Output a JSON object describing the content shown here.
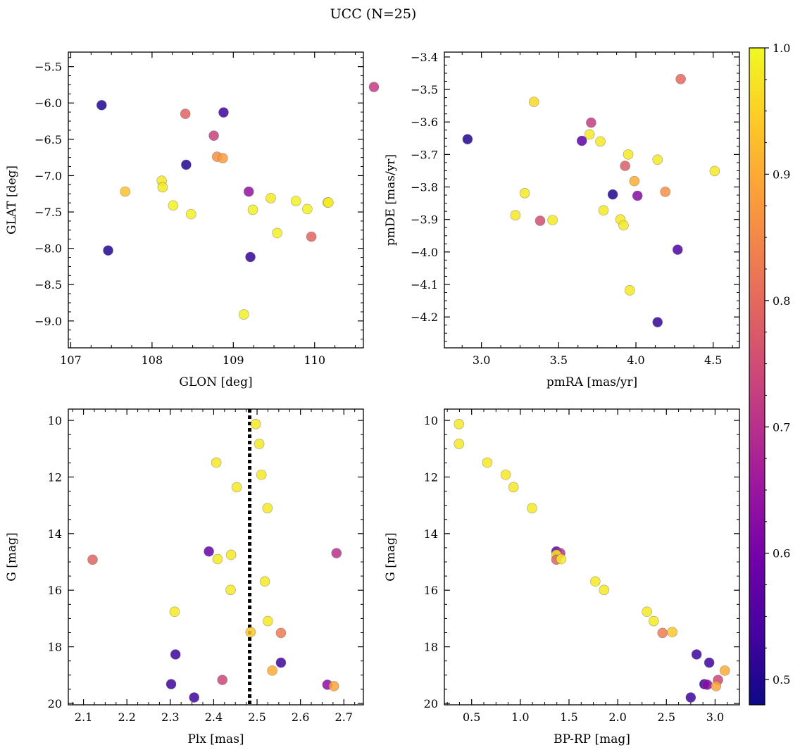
{
  "figure_title": "UCC (N=25)",
  "colormap": [
    "#0d0887",
    "#46039f",
    "#7201a8",
    "#9c179e",
    "#bd3786",
    "#d8576b",
    "#ed7953",
    "#fb9f3a",
    "#fdca26",
    "#f0f921"
  ],
  "colorbar": {
    "min": 0.48,
    "max": 1.0,
    "ticks": [
      0.5,
      0.6,
      0.7,
      0.8,
      0.9,
      1.0
    ],
    "tick_labels": [
      "0.5",
      "0.6",
      "0.7",
      "0.8",
      "0.9",
      "1.0"
    ]
  },
  "chart_data": [
    {
      "id": "glon-glat",
      "type": "scatter",
      "xlabel": "GLON [deg]",
      "ylabel": "GLAT [deg]",
      "xlim": [
        106.97,
        110.6
      ],
      "ylim": [
        -9.37,
        -5.3
      ],
      "xticks": [
        107,
        108,
        109,
        110
      ],
      "xtick_labels": [
        "107",
        "108",
        "109",
        "110"
      ],
      "yticks": [
        -9.0,
        -8.5,
        -8.0,
        -7.5,
        -7.0,
        -6.5,
        -6.0,
        -5.5
      ],
      "ytick_labels": [
        "−9.0",
        "−8.5",
        "−8.0",
        "−7.5",
        "−7.0",
        "−6.5",
        "−6.0",
        "−5.5"
      ],
      "points": [
        {
          "x": 107.38,
          "y": -6.03,
          "c": 0.5
        },
        {
          "x": 108.88,
          "y": -6.13,
          "c": 0.53
        },
        {
          "x": 108.41,
          "y": -6.15,
          "c": 0.79
        },
        {
          "x": 110.73,
          "y": -5.78,
          "c": 0.72
        },
        {
          "x": 108.76,
          "y": -6.45,
          "c": 0.73
        },
        {
          "x": 108.8,
          "y": -6.74,
          "c": 0.86
        },
        {
          "x": 108.87,
          "y": -6.76,
          "c": 0.88
        },
        {
          "x": 108.42,
          "y": -6.85,
          "c": 0.5
        },
        {
          "x": 108.12,
          "y": -7.07,
          "c": 0.98
        },
        {
          "x": 108.13,
          "y": -7.16,
          "c": 0.98
        },
        {
          "x": 107.67,
          "y": -7.22,
          "c": 0.93
        },
        {
          "x": 109.19,
          "y": -7.22,
          "c": 0.64
        },
        {
          "x": 109.46,
          "y": -7.31,
          "c": 0.98
        },
        {
          "x": 109.77,
          "y": -7.35,
          "c": 0.99
        },
        {
          "x": 110.16,
          "y": -7.37,
          "c": 0.99
        },
        {
          "x": 108.26,
          "y": -7.41,
          "c": 0.99
        },
        {
          "x": 109.91,
          "y": -7.46,
          "c": 0.99
        },
        {
          "x": 109.24,
          "y": -7.47,
          "c": 0.99
        },
        {
          "x": 108.48,
          "y": -7.53,
          "c": 0.99
        },
        {
          "x": 109.54,
          "y": -7.79,
          "c": 0.99
        },
        {
          "x": 109.96,
          "y": -7.84,
          "c": 0.79
        },
        {
          "x": 107.46,
          "y": -8.03,
          "c": 0.5
        },
        {
          "x": 109.21,
          "y": -8.12,
          "c": 0.52
        },
        {
          "x": 109.13,
          "y": -8.91,
          "c": 0.99
        },
        {
          "x": 110.17,
          "y": -7.37,
          "c": 0.98
        }
      ]
    },
    {
      "id": "pmra-pmde",
      "type": "scatter",
      "xlabel": "pmRA [mas/yr]",
      "ylabel": "pmDE [mas/yr]",
      "xlim": [
        2.76,
        4.67
      ],
      "ylim": [
        -4.295,
        -3.385
      ],
      "xticks": [
        3.0,
        3.5,
        4.0,
        4.5
      ],
      "xtick_labels": [
        "3.0",
        "3.5",
        "4.0",
        "4.5"
      ],
      "yticks": [
        -4.2,
        -4.1,
        -4.0,
        -3.9,
        -3.8,
        -3.7,
        -3.6,
        -3.5,
        -3.4
      ],
      "ytick_labels": [
        "−4.2",
        "−4.1",
        "−4.0",
        "−3.9",
        "−3.8",
        "−3.7",
        "−3.6",
        "−3.5",
        "−3.4"
      ],
      "points": [
        {
          "x": 2.91,
          "y": -3.653,
          "c": 0.5
        },
        {
          "x": 3.34,
          "y": -3.538,
          "c": 0.96
        },
        {
          "x": 4.29,
          "y": -3.468,
          "c": 0.8
        },
        {
          "x": 3.71,
          "y": -3.602,
          "c": 0.72
        },
        {
          "x": 3.65,
          "y": -3.658,
          "c": 0.57
        },
        {
          "x": 3.7,
          "y": -3.638,
          "c": 0.98
        },
        {
          "x": 3.77,
          "y": -3.66,
          "c": 0.98
        },
        {
          "x": 3.95,
          "y": -3.7,
          "c": 0.98
        },
        {
          "x": 4.14,
          "y": -3.716,
          "c": 0.98
        },
        {
          "x": 3.93,
          "y": -3.735,
          "c": 0.78
        },
        {
          "x": 4.51,
          "y": -3.751,
          "c": 0.98
        },
        {
          "x": 3.99,
          "y": -3.782,
          "c": 0.9
        },
        {
          "x": 3.28,
          "y": -3.819,
          "c": 0.98
        },
        {
          "x": 3.85,
          "y": -3.823,
          "c": 0.5
        },
        {
          "x": 4.01,
          "y": -3.827,
          "c": 0.62
        },
        {
          "x": 4.19,
          "y": -3.815,
          "c": 0.86
        },
        {
          "x": 3.79,
          "y": -3.872,
          "c": 0.98
        },
        {
          "x": 3.22,
          "y": -3.887,
          "c": 0.98
        },
        {
          "x": 3.38,
          "y": -3.904,
          "c": 0.75
        },
        {
          "x": 3.46,
          "y": -3.902,
          "c": 0.98
        },
        {
          "x": 3.9,
          "y": -3.9,
          "c": 0.98
        },
        {
          "x": 3.92,
          "y": -3.918,
          "c": 0.98
        },
        {
          "x": 4.27,
          "y": -3.993,
          "c": 0.55
        },
        {
          "x": 3.96,
          "y": -4.118,
          "c": 0.98
        },
        {
          "x": 4.14,
          "y": -4.216,
          "c": 0.52
        }
      ]
    },
    {
      "id": "plx-g",
      "type": "scatter",
      "xlabel": "Plx [mas]",
      "ylabel": "G [mag]",
      "xlim": [
        2.065,
        2.745
      ],
      "ylim": [
        20.05,
        9.6
      ],
      "y_inverted": true,
      "xticks": [
        2.1,
        2.2,
        2.3,
        2.4,
        2.5,
        2.6,
        2.7
      ],
      "xtick_labels": [
        "2.1",
        "2.2",
        "2.3",
        "2.4",
        "2.5",
        "2.6",
        "2.7"
      ],
      "yticks": [
        10,
        12,
        14,
        16,
        18,
        20
      ],
      "ytick_labels": [
        "10",
        "12",
        "14",
        "16",
        "18",
        "20"
      ],
      "vline": 2.483,
      "points": [
        {
          "x": 2.497,
          "y": 10.13,
          "c": 0.98
        },
        {
          "x": 2.505,
          "y": 10.83,
          "c": 0.98
        },
        {
          "x": 2.406,
          "y": 11.49,
          "c": 0.98
        },
        {
          "x": 2.51,
          "y": 11.92,
          "c": 0.98
        },
        {
          "x": 2.453,
          "y": 12.36,
          "c": 0.98
        },
        {
          "x": 2.524,
          "y": 13.1,
          "c": 0.98
        },
        {
          "x": 2.389,
          "y": 14.63,
          "c": 0.58
        },
        {
          "x": 2.44,
          "y": 14.75,
          "c": 0.98
        },
        {
          "x": 2.409,
          "y": 14.9,
          "c": 0.98
        },
        {
          "x": 2.121,
          "y": 14.92,
          "c": 0.79
        },
        {
          "x": 2.683,
          "y": 14.69,
          "c": 0.7
        },
        {
          "x": 2.518,
          "y": 15.69,
          "c": 0.98
        },
        {
          "x": 2.439,
          "y": 15.99,
          "c": 0.98
        },
        {
          "x": 2.31,
          "y": 16.76,
          "c": 0.98
        },
        {
          "x": 2.525,
          "y": 17.09,
          "c": 0.98
        },
        {
          "x": 2.485,
          "y": 17.48,
          "c": 0.94
        },
        {
          "x": 2.555,
          "y": 17.51,
          "c": 0.83
        },
        {
          "x": 2.312,
          "y": 18.27,
          "c": 0.53
        },
        {
          "x": 2.555,
          "y": 18.56,
          "c": 0.53
        },
        {
          "x": 2.535,
          "y": 18.84,
          "c": 0.9
        },
        {
          "x": 2.42,
          "y": 19.17,
          "c": 0.74
        },
        {
          "x": 2.302,
          "y": 19.32,
          "c": 0.53
        },
        {
          "x": 2.662,
          "y": 19.34,
          "c": 0.63
        },
        {
          "x": 2.677,
          "y": 19.39,
          "c": 0.89
        },
        {
          "x": 2.355,
          "y": 19.79,
          "c": 0.53
        }
      ]
    },
    {
      "id": "bprp-g",
      "type": "scatter",
      "xlabel": "BP-RP [mag]",
      "ylabel": "G [mag]",
      "xlim": [
        0.22,
        3.25
      ],
      "ylim": [
        20.05,
        9.6
      ],
      "y_inverted": true,
      "xticks": [
        0.5,
        1.0,
        1.5,
        2.0,
        2.5,
        3.0
      ],
      "xtick_labels": [
        "0.5",
        "1.0",
        "1.5",
        "2.0",
        "2.5",
        "3.0"
      ],
      "yticks": [
        10,
        12,
        14,
        16,
        18,
        20
      ],
      "ytick_labels": [
        "10",
        "12",
        "14",
        "16",
        "18",
        "20"
      ],
      "points": [
        {
          "x": 0.37,
          "y": 10.13,
          "c": 0.98
        },
        {
          "x": 0.37,
          "y": 10.83,
          "c": 0.98
        },
        {
          "x": 0.66,
          "y": 11.49,
          "c": 0.98
        },
        {
          "x": 0.85,
          "y": 11.92,
          "c": 0.98
        },
        {
          "x": 0.93,
          "y": 12.36,
          "c": 0.98
        },
        {
          "x": 1.12,
          "y": 13.1,
          "c": 0.98
        },
        {
          "x": 1.37,
          "y": 14.63,
          "c": 0.58
        },
        {
          "x": 1.41,
          "y": 14.69,
          "c": 0.7
        },
        {
          "x": 1.37,
          "y": 14.75,
          "c": 0.98
        },
        {
          "x": 1.37,
          "y": 14.92,
          "c": 0.79
        },
        {
          "x": 1.42,
          "y": 14.9,
          "c": 0.98
        },
        {
          "x": 1.77,
          "y": 15.69,
          "c": 0.98
        },
        {
          "x": 1.86,
          "y": 15.99,
          "c": 0.98
        },
        {
          "x": 2.3,
          "y": 16.76,
          "c": 0.98
        },
        {
          "x": 2.37,
          "y": 17.09,
          "c": 0.98
        },
        {
          "x": 2.46,
          "y": 17.51,
          "c": 0.83
        },
        {
          "x": 2.56,
          "y": 17.48,
          "c": 0.94
        },
        {
          "x": 2.81,
          "y": 18.27,
          "c": 0.53
        },
        {
          "x": 2.94,
          "y": 18.56,
          "c": 0.53
        },
        {
          "x": 3.1,
          "y": 18.84,
          "c": 0.9
        },
        {
          "x": 3.03,
          "y": 19.17,
          "c": 0.74
        },
        {
          "x": 2.89,
          "y": 19.32,
          "c": 0.53
        },
        {
          "x": 2.92,
          "y": 19.34,
          "c": 0.63
        },
        {
          "x": 3.01,
          "y": 19.39,
          "c": 0.89
        },
        {
          "x": 2.75,
          "y": 19.79,
          "c": 0.53
        }
      ]
    }
  ]
}
